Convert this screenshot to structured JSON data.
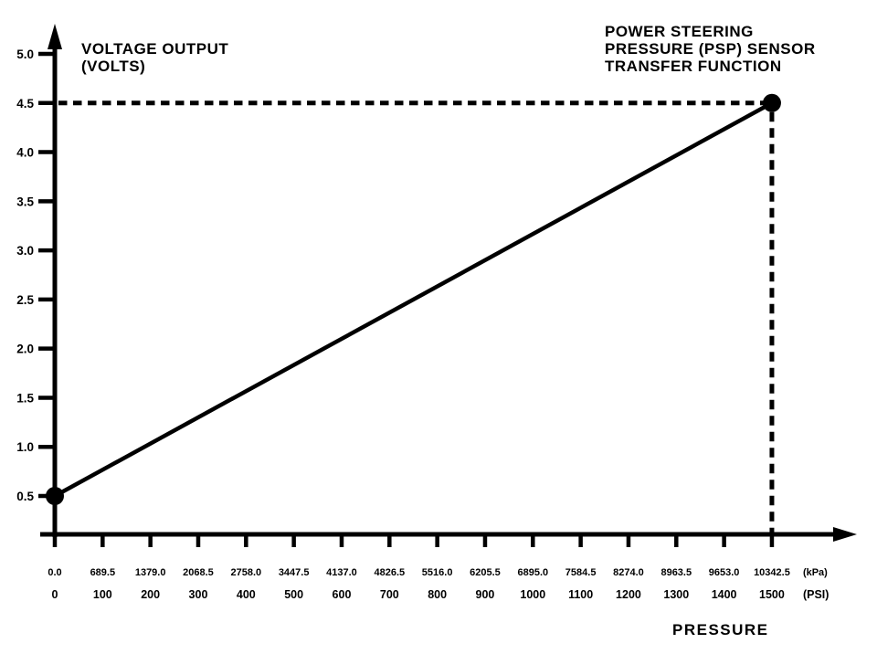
{
  "figure": {
    "background": "#ffffff",
    "ink_color": "#000000"
  },
  "chart_data": {
    "type": "line",
    "title_lines": [
      "POWER STEERING",
      "PRESSURE (PSP) SENSOR",
      "TRANSFER FUNCTION"
    ],
    "y_axis": {
      "label_lines": [
        "VOLTAGE OUTPUT",
        "(VOLTS)"
      ],
      "ticks": [
        "0.5",
        "1.0",
        "1.5",
        "2.0",
        "2.5",
        "3.0",
        "3.5",
        "4.0",
        "4.5",
        "5.0"
      ],
      "range_volts": [
        0,
        5.0
      ],
      "grid": false
    },
    "x_axis": {
      "label": "PRESSURE",
      "rows": [
        {
          "unit": "(kPa)",
          "ticks": [
            "0.0",
            "689.5",
            "1379.0",
            "2068.5",
            "2758.0",
            "3447.5",
            "4137.0",
            "4826.5",
            "5516.0",
            "6205.5",
            "6895.0",
            "7584.5",
            "8274.0",
            "8963.5",
            "9653.0",
            "10342.5"
          ]
        },
        {
          "unit": "(PSI)",
          "ticks": [
            "0",
            "100",
            "200",
            "300",
            "400",
            "500",
            "600",
            "700",
            "800",
            "900",
            "1000",
            "1100",
            "1200",
            "1300",
            "1400",
            "1500"
          ]
        }
      ],
      "range_psi": [
        0,
        1500
      ],
      "grid": false
    },
    "series": [
      {
        "name": "psp-sensor-transfer-function",
        "marker": "filled-circle",
        "points": [
          {
            "pressure_psi": 0,
            "pressure_kpa": 0.0,
            "volts": 0.5
          },
          {
            "pressure_psi": 1500,
            "pressure_kpa": 10342.5,
            "volts": 4.5
          }
        ]
      }
    ],
    "reference_lines": [
      {
        "orientation": "horizontal",
        "style": "dashed",
        "volts": 4.5
      },
      {
        "orientation": "vertical",
        "style": "dashed",
        "pressure_psi": 1500
      }
    ],
    "legend": "none"
  }
}
